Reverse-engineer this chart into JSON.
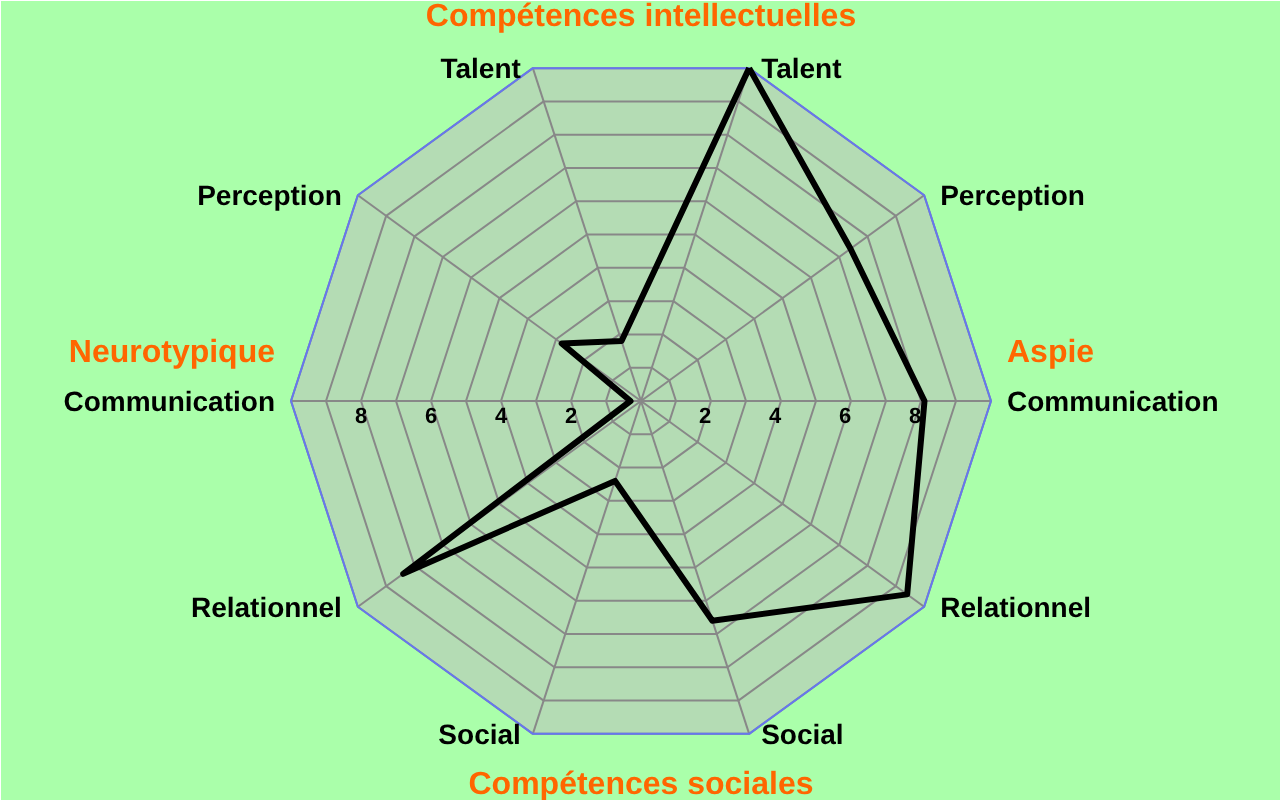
{
  "chart_data": {
    "type": "radar",
    "categories": [
      "Talent",
      "Perception",
      "Communication",
      "Relationnel",
      "Social",
      "Social",
      "Relationnel",
      "Communication",
      "Perception",
      "Talent"
    ],
    "series": [
      {
        "color": "#000000",
        "values": [
          10,
          7.4,
          8.1,
          9.4,
          6.6,
          2.4,
          8.4,
          0.3,
          2.8,
          1.8
        ]
      }
    ],
    "ylim": [
      0,
      10
    ],
    "yticks": [
      2,
      4,
      6,
      8
    ],
    "grid": true,
    "annotations": [
      "Compétences intellectuelles",
      "Compétences sociales",
      "Neurotypique",
      "Aspie",
      "2",
      "4",
      "6",
      "8"
    ]
  }
}
